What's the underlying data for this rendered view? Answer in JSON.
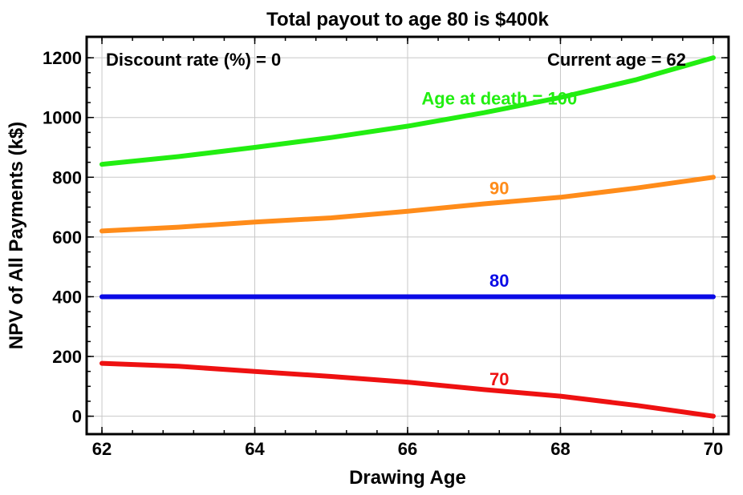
{
  "chart_data": {
    "type": "line",
    "title": "Total payout to age 80 is $400k",
    "xlabel": "Drawing Age",
    "ylabel": "NPV of All Payments (k$)",
    "xlim": [
      61.8,
      70.2
    ],
    "ylim": [
      -60,
      1270
    ],
    "xticks": [
      62,
      64,
      66,
      68,
      70
    ],
    "yticks": [
      0,
      200,
      400,
      600,
      800,
      1000,
      1200
    ],
    "grid": true,
    "annotations": {
      "discount_rate": "Discount rate (%) = 0",
      "current_age": "Current age = 62"
    },
    "series": [
      {
        "name": "Age at death = 100",
        "color": "#22ee11",
        "label_at": [
          67.2,
          1065
        ],
        "x": [
          62,
          63,
          64,
          65,
          66,
          67,
          68,
          69,
          70
        ],
        "y": [
          843,
          869,
          900,
          933,
          971,
          1016,
          1067,
          1127,
          1200
        ]
      },
      {
        "name": "90",
        "color": "#ff8c1a",
        "label_at": [
          67.2,
          765
        ],
        "x": [
          62,
          63,
          64,
          65,
          66,
          67,
          68,
          69,
          70
        ],
        "y": [
          620,
          633,
          650,
          664,
          686,
          711,
          733,
          764,
          800
        ]
      },
      {
        "name": "80",
        "color": "#0a0ae6",
        "label_at": [
          67.2,
          455
        ],
        "x": [
          62,
          63,
          64,
          65,
          66,
          67,
          68,
          69,
          70
        ],
        "y": [
          400,
          400,
          400,
          400,
          400,
          400,
          400,
          400,
          400
        ]
      },
      {
        "name": "70",
        "color": "#ee1111",
        "label_at": [
          67.2,
          125
        ],
        "x": [
          62,
          63,
          64,
          65,
          66,
          67,
          68,
          69,
          70
        ],
        "y": [
          177,
          167,
          150,
          133,
          114,
          89,
          67,
          36,
          0
        ]
      }
    ]
  }
}
